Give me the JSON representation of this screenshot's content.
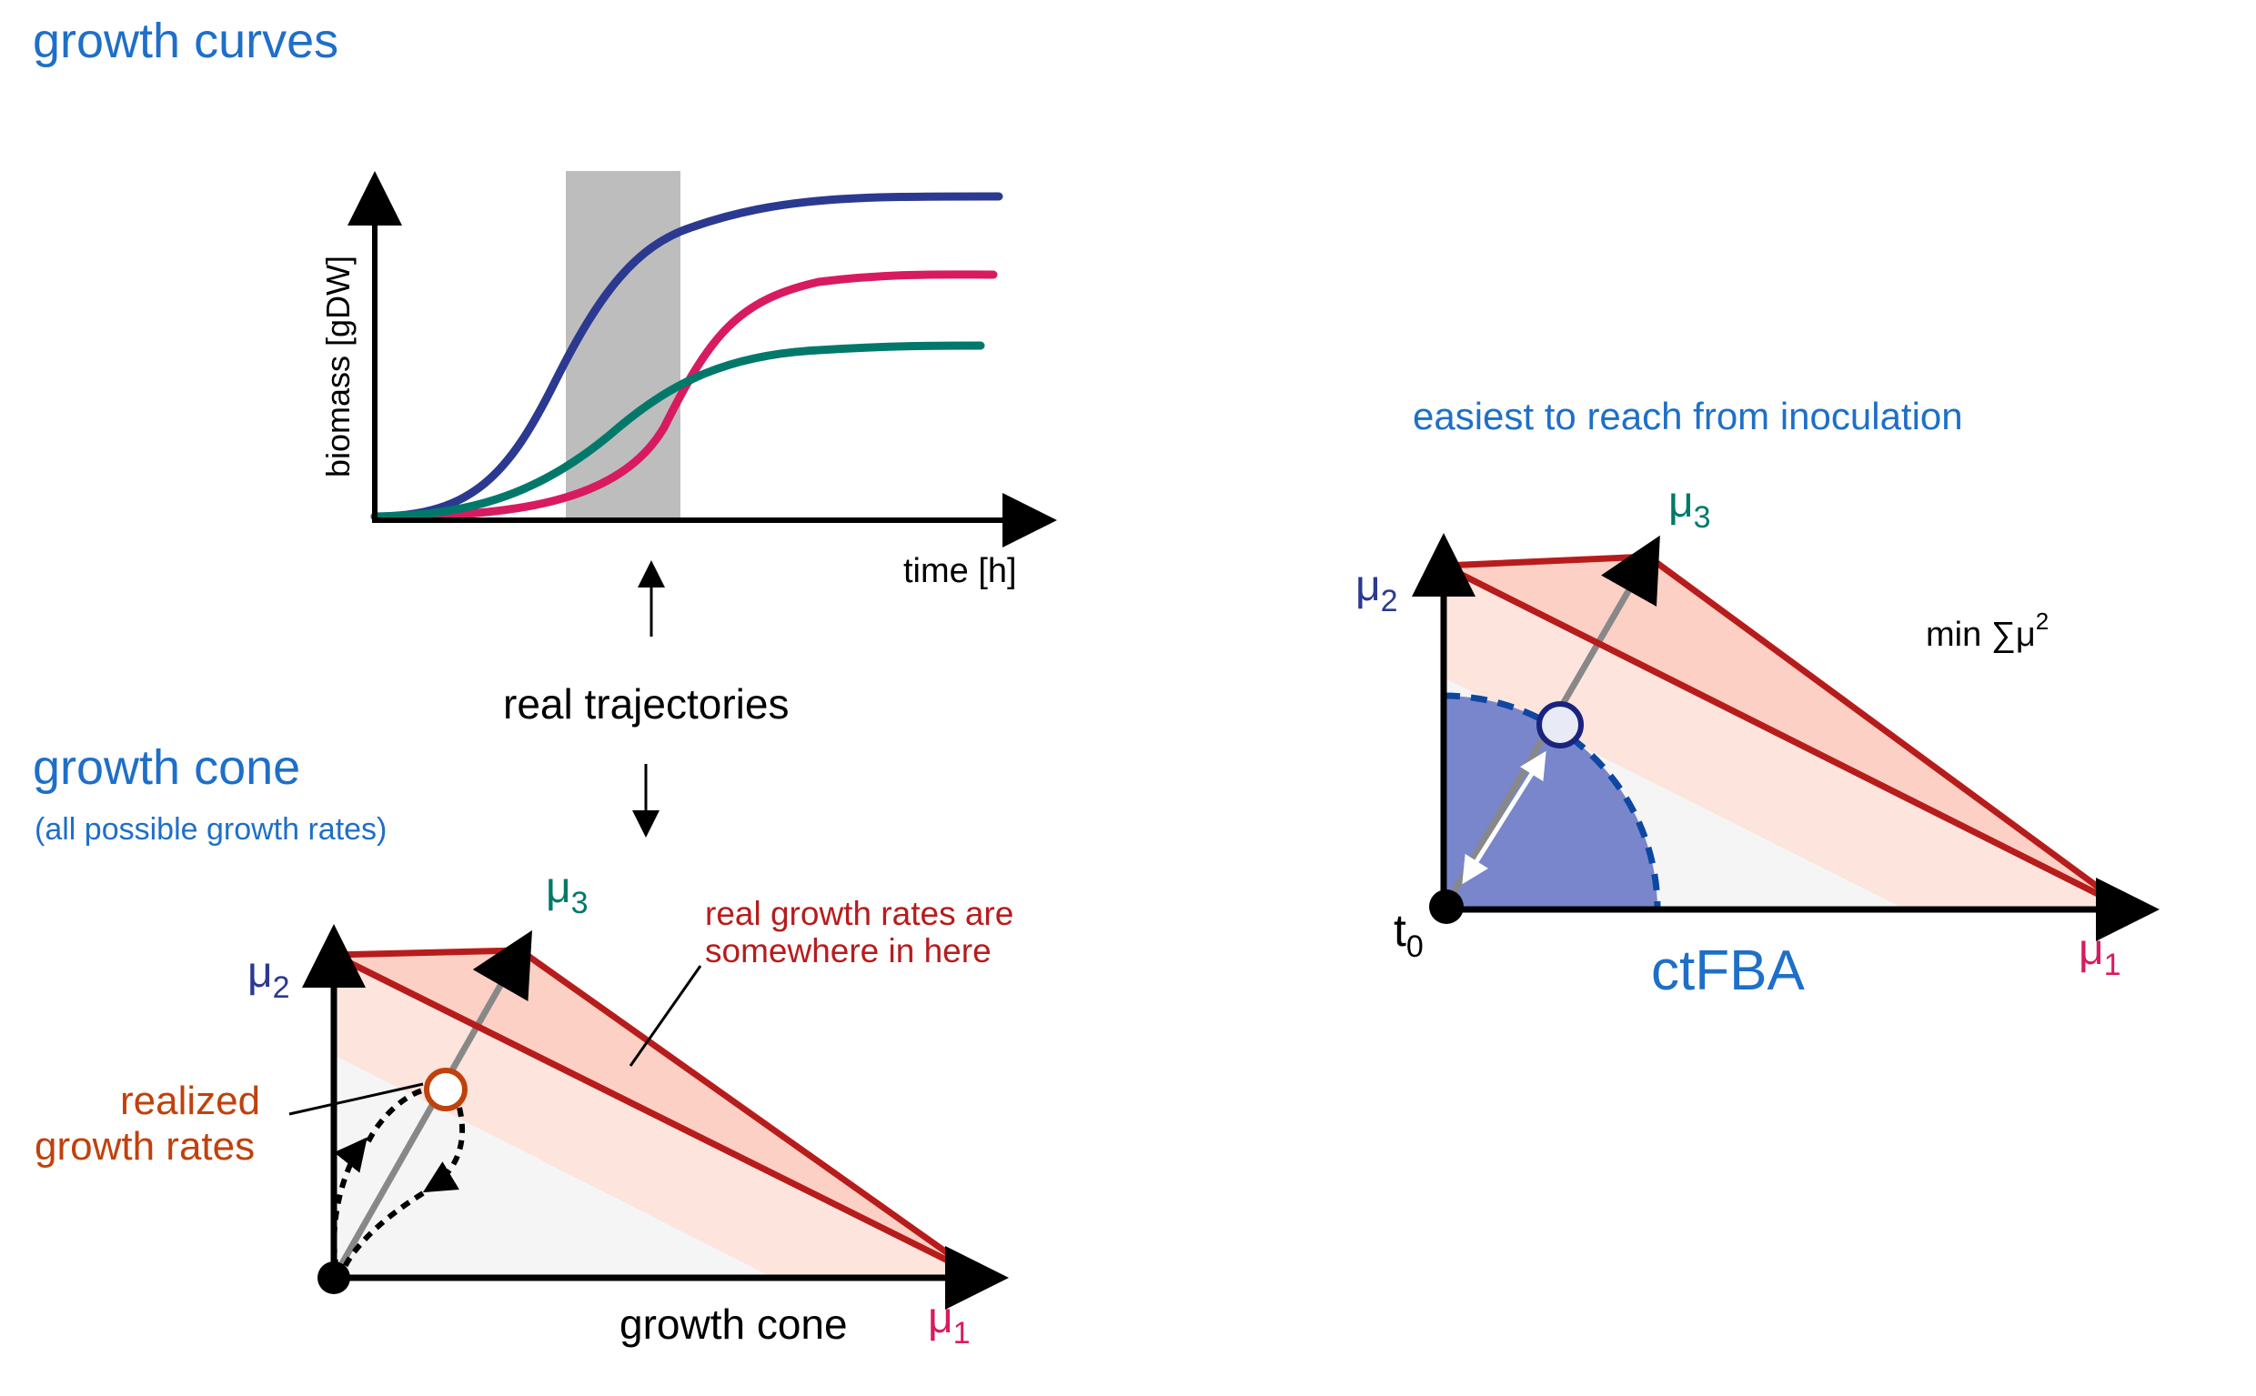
{
  "titles": {
    "growth_curves": "growth curves",
    "growth_cone": "growth cone",
    "growth_cone_sub": "(all possible growth rates)",
    "easiest": "easiest to reach from inoculation",
    "ctfba": "ctFBA"
  },
  "plot": {
    "ylabel": "biomass [gDW]",
    "xlabel": "time [h]",
    "shaded_label": ""
  },
  "middle": {
    "real_trajectories": "real trajectories"
  },
  "cone_left": {
    "axis_mu1": "μ",
    "axis_mu1_sub": "1",
    "axis_mu2": "μ",
    "axis_mu2_sub": "2",
    "axis_mu3": "μ",
    "axis_mu3_sub": "3",
    "annot_line1": "real growth rates are",
    "annot_line2": "somewhere in here",
    "realized_line1": "realized",
    "realized_line2": "growth rates",
    "caption": "growth cone"
  },
  "cone_right": {
    "axis_mu1": "μ",
    "axis_mu1_sub": "1",
    "axis_mu2": "μ",
    "axis_mu2_sub": "2",
    "axis_mu3": "μ",
    "axis_mu3_sub": "3",
    "origin": "t",
    "origin_sub": "0",
    "objective": "min ∑μ",
    "objective_sup": "2"
  },
  "colors": {
    "title_blue": "#1e6fc8",
    "curve_blue": "#2b3990",
    "curve_pink": "#d81b60",
    "curve_teal": "#00796b",
    "cone_red": "#b71c1c",
    "cone_fill": "#fcd0c4",
    "cone_fill_light": "#fde4dc",
    "orange_label": "#c0410c",
    "ctfba_blue": "#7986cb",
    "shade_gray": "#bdbdbd"
  }
}
